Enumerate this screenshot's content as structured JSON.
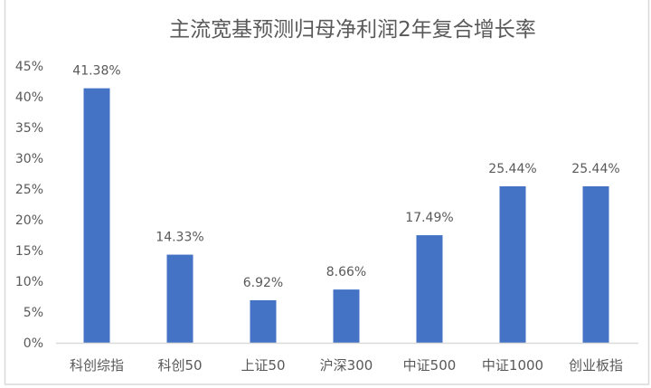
{
  "chart_data": {
    "type": "bar",
    "title": "主流宽基预测归母净利润2年复合增长率",
    "categories": [
      "科创综指",
      "科创50",
      "上证50",
      "沪深300",
      "中证500",
      "中证1000",
      "创业板指"
    ],
    "values": [
      41.38,
      14.33,
      6.92,
      8.66,
      17.49,
      25.44,
      25.44
    ],
    "data_labels": [
      "41.38%",
      "14.33%",
      "6.92%",
      "8.66%",
      "17.49%",
      "25.44%",
      "25.44%"
    ],
    "ylim": [
      0,
      45
    ],
    "yticks": [
      "0%",
      "5%",
      "10%",
      "15%",
      "20%",
      "25%",
      "30%",
      "35%",
      "40%",
      "45%"
    ],
    "xlabel": "",
    "ylabel": "",
    "grid": false,
    "legend": "none",
    "bar_color": "#4472C4"
  }
}
